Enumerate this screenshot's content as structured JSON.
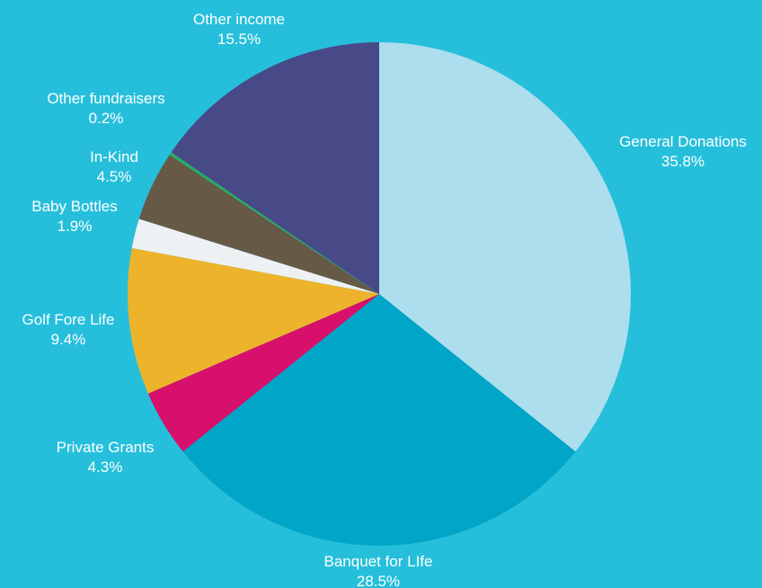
{
  "chart_data": {
    "type": "pie",
    "title": "",
    "start_angle_deg": 0,
    "direction": "clockwise",
    "background_color": "#26BFDB",
    "slices": [
      {
        "label": "General Donations",
        "value": 35.8,
        "value_label": "35.8%",
        "color": "#ADDEEE"
      },
      {
        "label": "Banquet for LIfe",
        "value": 28.5,
        "value_label": "28.5%",
        "color": "#00A5C8"
      },
      {
        "label": "Private Grants",
        "value": 4.3,
        "value_label": "4.3%",
        "color": "#D6106B"
      },
      {
        "label": "Golf Fore Life",
        "value": 9.4,
        "value_label": "9.4%",
        "color": "#EDB42B"
      },
      {
        "label": "Baby Bottles",
        "value": 1.9,
        "value_label": "1.9%",
        "color": "#EDF1F4"
      },
      {
        "label": "In-Kind",
        "value": 4.5,
        "value_label": "4.5%",
        "color": "#665A47"
      },
      {
        "label": "Other fundraisers",
        "value": 0.2,
        "value_label": "0.2%",
        "color": "#2AAB62"
      },
      {
        "label": "Other income",
        "value": 15.5,
        "value_label": "15.5%",
        "color": "#474A87"
      }
    ]
  }
}
